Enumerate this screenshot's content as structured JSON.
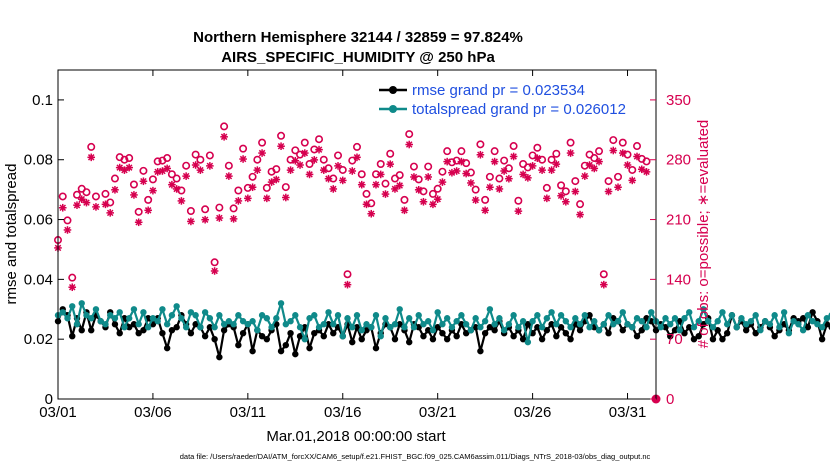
{
  "chart_data": {
    "type": "line",
    "title_line1": "Northern Hemisphere 32144 / 32859 = 97.824%",
    "title_line2": "AIRS_SPECIFIC_HUMIDITY @ 250 hPa",
    "ylabel": "rmse and totalspread",
    "y2label": "# of obs: o=possible; ∗=evaluated",
    "xlabel": "Mar.01,2018 00:00:00 start",
    "footnote": "data file: /Users/raeder/DAI/ATM_forcXX/CAM6_setup/f.e21.FHIST_BGC.f09_025.CAM6assim.011/Diags_NTrS_2018-03/obs_diag_output.nc",
    "xlim": [
      0,
      31.5
    ],
    "ylim": [
      0,
      0.11
    ],
    "y2lim": [
      0,
      385
    ],
    "x_ticks": [
      {
        "value": 0,
        "label": "03/01"
      },
      {
        "value": 5,
        "label": "03/06"
      },
      {
        "value": 10,
        "label": "03/11"
      },
      {
        "value": 15,
        "label": "03/16"
      },
      {
        "value": 20,
        "label": "03/21"
      },
      {
        "value": 25,
        "label": "03/26"
      },
      {
        "value": 30,
        "label": "03/31"
      }
    ],
    "y_ticks": [
      {
        "value": 0,
        "label": "0"
      },
      {
        "value": 0.02,
        "label": "0.02"
      },
      {
        "value": 0.04,
        "label": "0.04"
      },
      {
        "value": 0.06,
        "label": "0.06"
      },
      {
        "value": 0.08,
        "label": "0.08"
      },
      {
        "value": 0.1,
        "label": "0.1"
      }
    ],
    "y2_ticks": [
      {
        "value": 0,
        "label": "0"
      },
      {
        "value": 70,
        "label": "70"
      },
      {
        "value": 140,
        "label": "140"
      },
      {
        "value": 210,
        "label": "210"
      },
      {
        "value": 280,
        "label": "280"
      },
      {
        "value": 350,
        "label": "350"
      }
    ],
    "x_step_days": 0.25,
    "series": [
      {
        "name": "rmse",
        "legend": "rmse grand pr = 0.023534",
        "color": "#000000",
        "values": [
          0.026,
          0.03,
          0.028,
          0.021,
          0.027,
          0.023,
          0.029,
          0.023,
          0.028,
          0.026,
          0.024,
          0.029,
          0.025,
          0.022,
          0.027,
          0.024,
          0.025,
          0.022,
          0.023,
          0.027,
          0.025,
          0.027,
          0.022,
          0.017,
          0.023,
          0.024,
          0.028,
          0.025,
          0.022,
          0.025,
          0.024,
          0.021,
          0.024,
          0.02,
          0.014,
          0.023,
          0.025,
          0.024,
          0.018,
          0.022,
          0.025,
          0.016,
          0.023,
          0.021,
          0.02,
          0.023,
          0.025,
          0.016,
          0.018,
          0.022,
          0.015,
          0.021,
          0.024,
          0.017,
          0.022,
          0.023,
          0.021,
          0.025,
          0.022,
          0.024,
          0.021,
          0.025,
          0.019,
          0.024,
          0.02,
          0.023,
          0.024,
          0.017,
          0.022,
          0.025,
          0.024,
          0.02,
          0.025,
          0.023,
          0.019,
          0.025,
          0.024,
          0.021,
          0.023,
          0.02,
          0.024,
          0.022,
          0.02,
          0.023,
          0.021,
          0.025,
          0.022,
          0.023,
          0.024,
          0.016,
          0.022,
          0.024,
          0.023,
          0.026,
          0.022,
          0.024,
          0.021,
          0.023,
          0.02,
          0.025,
          0.022,
          0.024,
          0.02,
          0.023,
          0.025,
          0.021,
          0.024,
          0.022,
          0.02,
          0.025,
          0.023,
          0.026,
          0.028,
          0.024,
          0.023,
          0.025,
          0.022,
          0.027,
          0.026,
          0.023,
          0.025,
          0.024,
          0.021,
          0.023,
          0.027,
          0.026,
          0.023,
          0.025,
          0.024,
          0.021,
          0.023,
          0.026,
          0.022,
          0.024,
          0.02,
          0.021,
          0.025,
          0.027,
          0.02,
          0.023,
          0.02,
          0.022,
          0.028,
          0.024,
          0.026,
          0.023,
          0.025,
          0.022,
          0.024,
          0.026,
          0.024,
          0.021,
          0.023,
          0.025,
          0.023,
          0.027,
          0.026,
          0.027,
          0.024,
          0.029,
          0.026,
          0.02,
          0.025,
          0.024,
          0.027,
          0.022,
          0.026,
          0.025,
          0.024,
          0.022,
          0.02,
          0.024,
          0.026,
          0.023,
          0.025,
          0.023,
          0.028,
          0.024,
          0.026,
          0.023,
          0.028,
          0.03,
          0.028,
          0.029,
          0.034,
          0.025,
          0.026,
          0.029,
          0.031,
          0.028,
          0.026,
          0.022,
          0.027,
          0.033,
          0.026,
          0.025,
          0.023,
          0.027,
          0.025,
          0.03,
          0.026,
          0.024,
          0.021,
          0.024,
          0.027,
          0.031,
          0.03
        ]
      },
      {
        "name": "totalspread",
        "legend": "totalspread grand pr = 0.026012",
        "color": "#0f8a8a",
        "values": [
          0.028,
          0.029,
          0.027,
          0.031,
          0.025,
          0.032,
          0.028,
          0.027,
          0.03,
          0.026,
          0.025,
          0.028,
          0.027,
          0.029,
          0.024,
          0.027,
          0.03,
          0.025,
          0.029,
          0.024,
          0.027,
          0.026,
          0.03,
          0.025,
          0.028,
          0.031,
          0.027,
          0.024,
          0.029,
          0.028,
          0.024,
          0.029,
          0.027,
          0.024,
          0.028,
          0.025,
          0.026,
          0.025,
          0.028,
          0.026,
          0.025,
          0.026,
          0.023,
          0.028,
          0.027,
          0.024,
          0.027,
          0.032,
          0.025,
          0.026,
          0.028,
          0.024,
          0.02,
          0.027,
          0.028,
          0.024,
          0.025,
          0.029,
          0.025,
          0.028,
          0.021,
          0.027,
          0.024,
          0.028,
          0.023,
          0.025,
          0.024,
          0.028,
          0.021,
          0.027,
          0.024,
          0.025,
          0.03,
          0.024,
          0.027,
          0.024,
          0.028,
          0.025,
          0.026,
          0.023,
          0.029,
          0.025,
          0.027,
          0.024,
          0.026,
          0.028,
          0.025,
          0.023,
          0.027,
          0.024,
          0.026,
          0.03,
          0.025,
          0.027,
          0.023,
          0.025,
          0.028,
          0.024,
          0.026,
          0.019,
          0.026,
          0.028,
          0.024,
          0.027,
          0.029,
          0.025,
          0.028,
          0.026,
          0.024,
          0.027,
          0.025,
          0.028,
          0.024,
          0.026,
          0.023,
          0.025,
          0.028,
          0.025,
          0.026,
          0.029,
          0.025,
          0.024,
          0.027,
          0.026,
          0.024,
          0.029,
          0.026,
          0.024,
          0.027,
          0.025,
          0.027,
          0.023,
          0.027,
          0.029,
          0.024,
          0.026,
          0.03,
          0.026,
          0.024,
          0.026,
          0.029,
          0.025,
          0.028,
          0.024,
          0.027,
          0.025,
          0.026,
          0.028,
          0.023,
          0.026,
          0.025,
          0.028,
          0.024,
          0.029,
          0.022,
          0.026,
          0.025,
          0.023,
          0.028,
          0.026,
          0.025,
          0.024,
          0.027,
          0.028,
          0.024,
          0.026,
          0.031,
          0.025,
          0.027,
          0.028,
          0.026,
          0.03,
          0.028,
          0.025,
          0.029,
          0.027,
          0.028,
          0.031,
          0.026,
          0.029,
          0.031,
          0.027,
          0.03,
          0.025,
          0.031,
          0.026,
          0.029,
          0.024,
          0.032,
          0.028,
          0.025,
          0.029,
          0.027,
          0.028,
          0.03,
          0.027,
          0.029,
          0.023,
          0.027,
          0.03,
          0.029,
          0.026,
          0.029,
          0.03
        ]
      }
    ],
    "obs_color": "#d6004f",
    "obs_x": [
      0.0,
      0.25,
      0.5,
      0.75,
      1.0,
      1.25,
      1.5,
      1.75,
      2.0,
      2.5,
      2.75,
      3.0,
      3.25,
      3.5,
      3.75,
      4.0,
      4.25,
      4.5,
      4.75,
      5.0,
      5.25,
      5.5,
      5.75,
      6.0,
      6.25,
      6.5,
      6.75,
      7.0,
      7.25,
      7.5,
      7.75,
      8.0,
      8.25,
      8.5,
      8.75,
      9.0,
      9.25,
      9.5,
      9.75,
      10.0,
      10.25,
      10.5,
      10.75,
      11.0,
      11.25,
      11.5,
      11.75,
      12.0,
      12.25,
      12.5,
      12.75,
      13.0,
      13.25,
      13.5,
      13.75,
      14.0,
      14.25,
      14.5,
      14.75,
      15.0,
      15.25,
      15.5,
      15.75,
      16.0,
      16.25,
      16.5,
      16.75,
      17.0,
      17.25,
      17.5,
      17.75,
      18.0,
      18.25,
      18.5,
      18.75,
      19.0,
      19.25,
      19.5,
      19.75,
      20.0,
      20.25,
      20.5,
      20.75,
      21.0,
      21.25,
      21.5,
      21.75,
      22.0,
      22.25,
      22.5,
      22.75,
      23.0,
      23.25,
      23.5,
      23.75,
      24.0,
      24.25,
      24.5,
      24.75,
      25.0,
      25.25,
      25.5,
      25.75,
      26.0,
      26.25,
      26.5,
      26.75,
      27.0,
      27.25,
      27.5,
      27.75,
      28.0,
      28.25,
      28.5,
      28.75,
      29.0,
      29.25,
      29.5,
      29.75,
      30.0,
      30.25,
      30.5,
      30.75,
      31.0,
      31.25
    ],
    "obs_possible": [
      186,
      237,
      209,
      142,
      239,
      246,
      242,
      295,
      237,
      240,
      230,
      258,
      283,
      280,
      282,
      251,
      219,
      267,
      233,
      257,
      278,
      279,
      282,
      263,
      258,
      244,
      273,
      220,
      286,
      280,
      222,
      285,
      160,
      224,
      319,
      273,
      223,
      244,
      293,
      247,
      260,
      280,
      300,
      247,
      266,
      269,
      308,
      248,
      280,
      291,
      286,
      300,
      275,
      292,
      304,
      280,
      270,
      258,
      285,
      268,
      146,
      279,
      295,
      263,
      240,
      229,
      263,
      275,
      252,
      287,
      258,
      262,
      233,
      310,
      272,
      257,
      243,
      272,
      240,
      246,
      266,
      290,
      277,
      279,
      290,
      276,
      265,
      245,
      298,
      233,
      260,
      290,
      258,
      279,
      270,
      296,
      232,
      275,
      271,
      285,
      294,
      280,
      247,
      280,
      287,
      250,
      243,
      300,
      255,
      228,
      273,
      286,
      282,
      290,
      146,
      255,
      303,
      260,
      300,
      286,
      268,
      296,
      281,
      278
    ],
    "obs_evaluated": [
      185,
      232,
      206,
      139,
      235,
      242,
      238,
      291,
      233,
      236,
      226,
      253,
      279,
      276,
      279,
      247,
      215,
      263,
      229,
      252,
      274,
      275,
      278,
      259,
      254,
      240,
      269,
      216,
      282,
      276,
      218,
      281,
      158,
      220,
      315,
      269,
      219,
      240,
      289,
      243,
      256,
      276,
      296,
      243,
      262,
      265,
      304,
      244,
      276,
      287,
      282,
      296,
      271,
      288,
      300,
      276,
      266,
      254,
      281,
      264,
      142,
      275,
      291,
      259,
      236,
      225,
      259,
      271,
      248,
      283,
      254,
      258,
      229,
      306,
      268,
      253,
      239,
      268,
      236,
      242,
      262,
      286,
      273,
      275,
      286,
      272,
      261,
      241,
      294,
      229,
      256,
      286,
      254,
      275,
      266,
      292,
      228,
      271,
      267,
      281,
      290,
      276,
      243,
      276,
      283,
      246,
      239,
      296,
      251,
      224,
      269,
      282,
      278,
      286,
      142,
      251,
      299,
      256,
      296,
      282,
      264,
      292,
      277,
      274
    ],
    "end_marker": {
      "x": 31.5,
      "value": 0
    }
  }
}
